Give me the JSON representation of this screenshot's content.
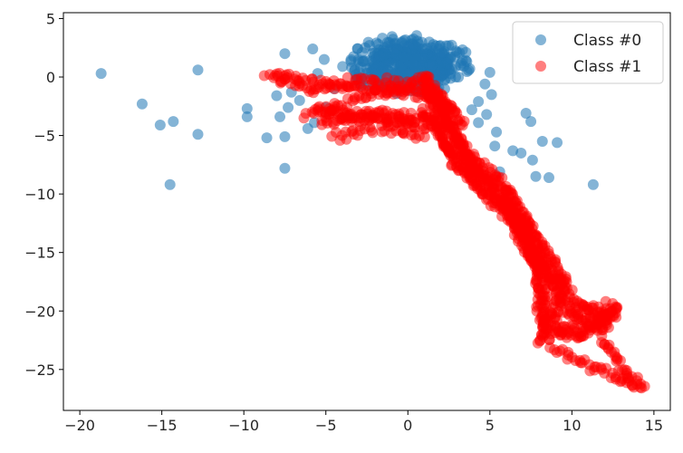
{
  "chart_data": {
    "type": "scatter",
    "title": "",
    "xlabel": "",
    "ylabel": "",
    "xlim": [
      -21,
      16
    ],
    "ylim": [
      -28.5,
      5.5
    ],
    "xticks": [
      -20,
      -15,
      -10,
      -5,
      0,
      5,
      10,
      15
    ],
    "yticks": [
      5,
      0,
      -5,
      -10,
      -15,
      -20,
      -25
    ],
    "grid": false,
    "legend": {
      "placement": "top-right",
      "entries": [
        {
          "label": "Class #0",
          "color": "#1f77b4"
        },
        {
          "label": "Class #1",
          "color": "#ff0000"
        }
      ]
    },
    "colors": {
      "class0": "#1f77b4",
      "class1": "#ff0000"
    },
    "series": [
      {
        "name": "Class #0",
        "color": "#1f77b4",
        "opacity": 0.55,
        "cluster": {
          "center": [
            0,
            1.0
          ],
          "radius_x": 4.0,
          "radius_y": 2.6,
          "count": 450
        },
        "outliers": [
          [
            -18.7,
            0.3
          ],
          [
            -16.2,
            -2.3
          ],
          [
            -14.3,
            -3.8
          ],
          [
            -15.1,
            -4.1
          ],
          [
            -14.5,
            -9.2
          ],
          [
            -12.8,
            0.6
          ],
          [
            -12.8,
            -4.9
          ],
          [
            -9.8,
            -2.7
          ],
          [
            -9.8,
            -3.4
          ],
          [
            -8.6,
            -5.2
          ],
          [
            -7.5,
            -5.1
          ],
          [
            -7.5,
            -7.8
          ],
          [
            -7.8,
            -3.4
          ],
          [
            -8.0,
            -1.6
          ],
          [
            -7.3,
            -2.6
          ],
          [
            -7.1,
            -1.3
          ],
          [
            -6.6,
            -2.0
          ],
          [
            -6.1,
            -4.4
          ],
          [
            -5.7,
            -3.9
          ],
          [
            -5.0,
            -2.6
          ],
          [
            -5.8,
            2.4
          ],
          [
            -5.1,
            1.5
          ],
          [
            -5.5,
            0.3
          ],
          [
            -7.5,
            2.0
          ],
          [
            -4.5,
            -1.0
          ],
          [
            3.9,
            -2.8
          ],
          [
            4.3,
            -3.9
          ],
          [
            5.4,
            -4.7
          ],
          [
            5.3,
            -5.9
          ],
          [
            4.8,
            -3.2
          ],
          [
            6.4,
            -6.3
          ],
          [
            6.9,
            -6.5
          ],
          [
            7.6,
            -7.1
          ],
          [
            5.6,
            -8.1
          ],
          [
            7.2,
            -3.1
          ],
          [
            7.5,
            -3.8
          ],
          [
            8.2,
            -5.5
          ],
          [
            9.1,
            -5.6
          ],
          [
            7.8,
            -8.5
          ],
          [
            8.6,
            -8.6
          ],
          [
            11.3,
            -9.2
          ],
          [
            5.0,
            0.4
          ],
          [
            4.7,
            -0.6
          ],
          [
            5.1,
            -1.5
          ],
          [
            4.3,
            -2.1
          ]
        ]
      },
      {
        "name": "Class #1",
        "color": "#ff0000",
        "opacity": 0.5,
        "paths": [
          [
            [
              -8.5,
              0.1
            ],
            [
              -6.0,
              -1.2
            ],
            [
              -3.0,
              -0.2
            ],
            [
              -1.0,
              -0.6
            ],
            [
              1.5,
              -0.3
            ]
          ],
          [
            [
              -8.2,
              0.2
            ],
            [
              -5.0,
              -0.6
            ],
            [
              -1.5,
              -1.2
            ],
            [
              1.0,
              -1.5
            ],
            [
              3.0,
              -2.8
            ]
          ],
          [
            [
              -5.7,
              -2.7
            ],
            [
              -2.0,
              -3.4
            ],
            [
              -1.0,
              -3.9
            ],
            [
              1.5,
              -4.3
            ]
          ],
          [
            [
              -4.9,
              -2.9
            ],
            [
              -3.0,
              -3.6
            ],
            [
              -0.8,
              -3.0
            ],
            [
              0.5,
              -4.2
            ]
          ],
          [
            [
              -5.4,
              -4.0
            ],
            [
              -2.5,
              -3.3
            ],
            [
              0.8,
              -3.5
            ],
            [
              2.8,
              -4.2
            ]
          ],
          [
            [
              -4.6,
              -5.1
            ],
            [
              -1.5,
              -4.3
            ],
            [
              1.0,
              -5.2
            ]
          ],
          [
            [
              -6.2,
              -3.3
            ],
            [
              -3.5,
              -2.0
            ],
            [
              -0.5,
              -1.0
            ],
            [
              2.0,
              -1.5
            ],
            [
              3.5,
              -4.5
            ]
          ],
          [
            [
              1.0,
              0.0
            ],
            [
              2.0,
              -2.0
            ],
            [
              2.5,
              -4.5
            ],
            [
              3.5,
              -6.5
            ],
            [
              5.5,
              -8.5
            ],
            [
              7.0,
              -12.5
            ],
            [
              7.8,
              -15.5
            ],
            [
              9.5,
              -19.2
            ],
            [
              10.5,
              -20.8
            ],
            [
              11.8,
              -21.7
            ],
            [
              12.9,
              -19.5
            ]
          ],
          [
            [
              2.0,
              -2.5
            ],
            [
              3.0,
              -5.0
            ],
            [
              4.0,
              -7.5
            ],
            [
              6.0,
              -11.0
            ],
            [
              7.2,
              -14.0
            ],
            [
              8.3,
              -17.5
            ],
            [
              8.3,
              -21.8
            ],
            [
              12.6,
              -19.9
            ]
          ],
          [
            [
              1.2,
              -1.0
            ],
            [
              2.5,
              -3.5
            ],
            [
              3.5,
              -7.0
            ],
            [
              5.8,
              -10.5
            ],
            [
              7.5,
              -13.5
            ],
            [
              9.0,
              -17.0
            ],
            [
              10.0,
              -19.0
            ],
            [
              11.5,
              -20.5
            ],
            [
              12.3,
              -20.0
            ]
          ],
          [
            [
              0.8,
              -2.8
            ],
            [
              1.8,
              -4.5
            ],
            [
              2.8,
              -7.5
            ],
            [
              4.5,
              -9.5
            ],
            [
              6.2,
              -12.0
            ],
            [
              7.0,
              -14.0
            ],
            [
              7.8,
              -16.0
            ],
            [
              8.0,
              -18.5
            ],
            [
              8.3,
              -21.0
            ],
            [
              9.8,
              -20.0
            ],
            [
              12.0,
              -19.4
            ]
          ],
          [
            [
              2.5,
              -6.0
            ],
            [
              4.0,
              -9.0
            ],
            [
              6.0,
              -11.5
            ],
            [
              7.5,
              -15.5
            ],
            [
              9.5,
              -18.0
            ],
            [
              8.0,
              -22.5
            ],
            [
              10.5,
              -22.0
            ],
            [
              12.8,
              -20.0
            ]
          ],
          [
            [
              8.8,
              -21.7
            ],
            [
              10.5,
              -22.2
            ],
            [
              12.7,
              -19.7
            ]
          ],
          [
            [
              12.0,
              -22.5
            ],
            [
              13.0,
              -24.8
            ],
            [
              14.4,
              -26.8
            ]
          ],
          [
            [
              8.8,
              -23.3
            ],
            [
              11.0,
              -24.5
            ],
            [
              13.0,
              -25.8
            ],
            [
              14.2,
              -26.6
            ]
          ],
          [
            [
              3.2,
              -6.8
            ],
            [
              4.5,
              -8.2
            ],
            [
              6.0,
              -9.5
            ],
            [
              7.2,
              -12.0
            ],
            [
              8.5,
              -15.0
            ],
            [
              9.8,
              -17.8
            ]
          ],
          [
            [
              1.0,
              0.0
            ],
            [
              1.4,
              -2.0
            ],
            [
              1.8,
              -3.8
            ],
            [
              2.2,
              -5.8
            ],
            [
              3.0,
              -6.8
            ]
          ]
        ],
        "points_per_unit": 5.5,
        "jitter": 0.22
      }
    ]
  }
}
